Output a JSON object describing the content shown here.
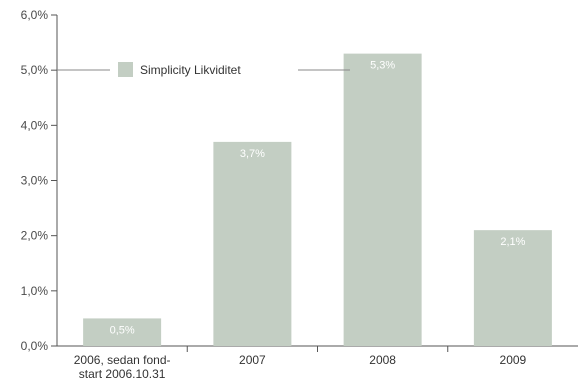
{
  "chart_data": {
    "type": "bar",
    "categories": [
      "2006, sedan fond-\nstart 2006.10.31",
      "2007",
      "2008",
      "2009"
    ],
    "series": [
      {
        "name": "Simplicity Likviditet",
        "values": [
          0.5,
          3.7,
          5.3,
          2.1
        ]
      }
    ],
    "data_labels": [
      "0,5%",
      "3,7%",
      "5,3%",
      "2,1%"
    ],
    "y_ticks": [
      "0,0%",
      "1,0%",
      "2,0%",
      "3,0%",
      "4,0%",
      "5,0%",
      "6,0%"
    ],
    "ylim": [
      0,
      6
    ],
    "grid": false,
    "legend": {
      "placement": "top-left"
    },
    "colors": {
      "bar": "#c3cec3",
      "axis": "#555555",
      "legend_line": "#888888"
    }
  }
}
